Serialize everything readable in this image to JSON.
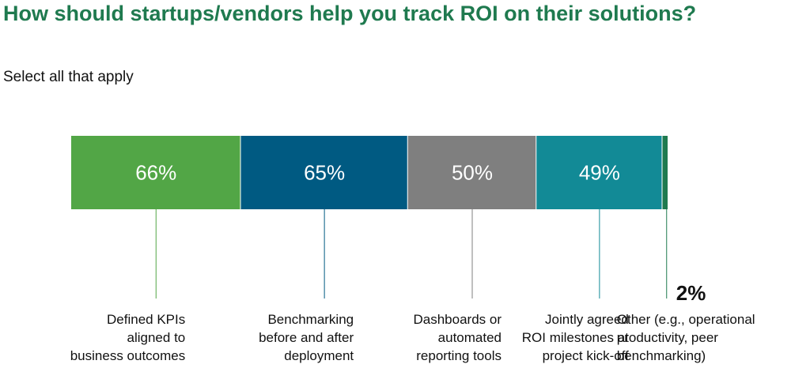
{
  "title": "How should startups/vendors help you track ROI on their solutions?",
  "subtitle": "Select all that apply",
  "chart_data": {
    "type": "bar",
    "layout": "segmented-horizontal",
    "categories": [
      "Defined KPIs aligned to business outcomes",
      "Benchmarking before and after deployment",
      "Dashboards or automated reporting tools",
      "Jointly agreed ROI milestones at project kick-off",
      "Other (e.g., operational productivity, peer benchmarking)"
    ],
    "category_lines": [
      [
        "Defined KPIs",
        "aligned to",
        "business outcomes"
      ],
      [
        "Benchmarking",
        "before and after",
        "deployment"
      ],
      [
        "Dashboards or",
        "automated",
        "reporting tools"
      ],
      [
        "Jointly agreed",
        "ROI milestones at",
        "project kick-off"
      ],
      [
        "Other (e.g., operational",
        "productivity, peer",
        "benchmarking)"
      ]
    ],
    "values": [
      66,
      65,
      50,
      49,
      2
    ],
    "value_labels": [
      "66%",
      "65%",
      "50%",
      "49%",
      "2%"
    ],
    "unit": "%",
    "colors": [
      "#52a646",
      "#005a82",
      "#7f7f7f",
      "#128a96",
      "#1f7a4f"
    ],
    "label_align": [
      "right",
      "right",
      "right",
      "right",
      "left"
    ]
  }
}
